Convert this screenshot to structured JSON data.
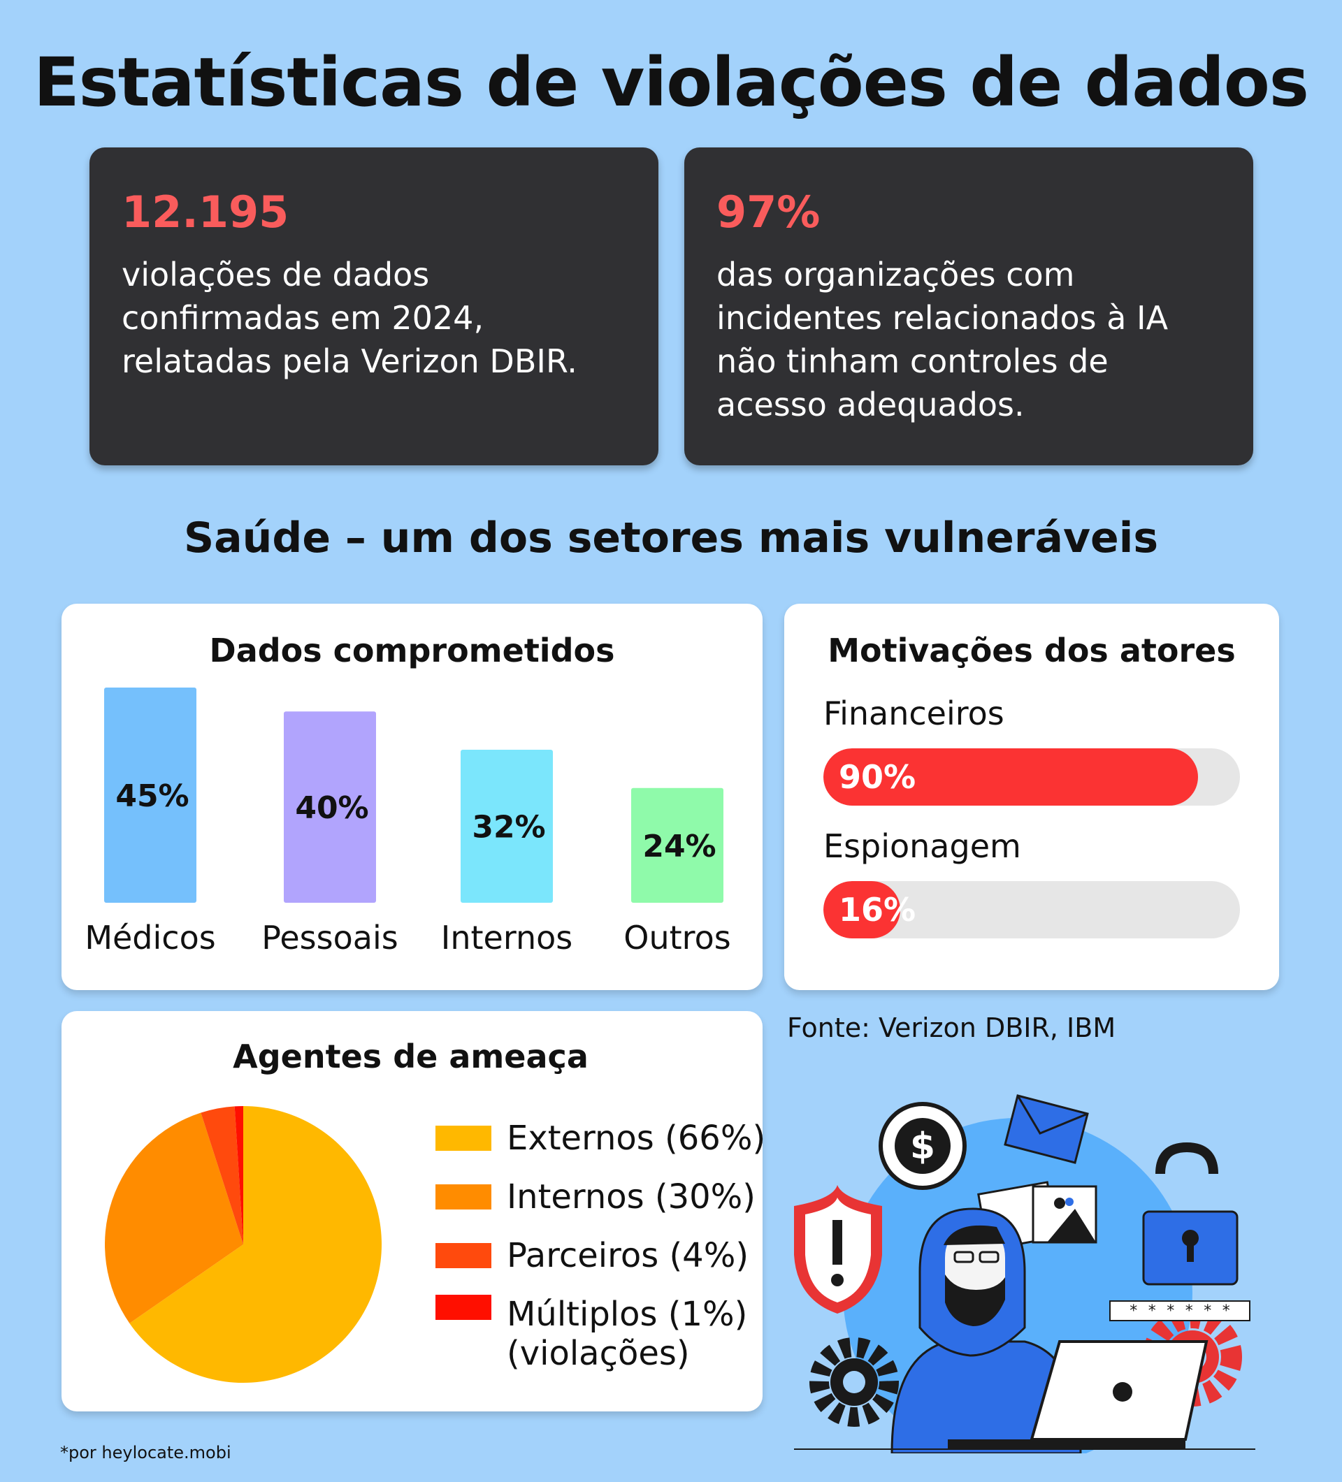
{
  "header": {
    "title": "Estatísticas de violações de dados"
  },
  "stats": [
    {
      "value": "12.195",
      "text": "violações de dados confirmadas em 2024, relatadas pela Verizon DBIR."
    },
    {
      "value": "97%",
      "text": "das organizações com incidentes relacionados à IA não tinham controles de acesso adequados."
    }
  ],
  "section": {
    "title": "Saúde – um dos setores mais vulneráveis"
  },
  "chart_data": [
    {
      "type": "bar",
      "title": "Dados comprometidos",
      "categories": [
        "Médicos",
        "Pessoais",
        "Internos",
        "Outros"
      ],
      "values": [
        45,
        40,
        32,
        24
      ],
      "value_labels": [
        "45%",
        "40%",
        "32%",
        "24%"
      ],
      "colors": [
        "#75c0fc",
        "#b1a4fd",
        "#7be6fc",
        "#8ffaaa"
      ],
      "ylim": [
        0,
        45
      ],
      "grid": false
    },
    {
      "type": "bar",
      "title": "Motivações dos atores",
      "orientation": "horizontal",
      "categories": [
        "Financeiros",
        "Espionagem"
      ],
      "values": [
        90,
        16
      ],
      "value_labels": [
        "90%",
        "16%"
      ],
      "ylim": [
        0,
        100
      ],
      "color": "#fb3333"
    },
    {
      "type": "pie",
      "title": "Agentes de ameaça",
      "categories": [
        "Externos",
        "Internos",
        "Parceiros",
        "Múltiplos"
      ],
      "values": [
        66,
        30,
        4,
        1
      ],
      "legend": [
        "Externos (66%)",
        "Internos (30%)",
        "Parceiros (4%)",
        "Múltiplos (1%)"
      ],
      "legend_suffix": "(violações)",
      "legend_position": "right",
      "colors": [
        "#ffb800",
        "#ff8c00",
        "#ff4a0d",
        "#ff0f00"
      ]
    }
  ],
  "footer": {
    "source": "Fonte: Verizon DBIR, IBM",
    "credit": "*por heylocate.mobi",
    "password_mask": "* * * * * *"
  },
  "illustration": {
    "icons": [
      "dollar-icon",
      "envelope-icon",
      "warning-shield-icon",
      "photo-icon",
      "unlocked-padlock-icon",
      "gear-icon",
      "laptop-icon",
      "hacker-figure"
    ]
  }
}
